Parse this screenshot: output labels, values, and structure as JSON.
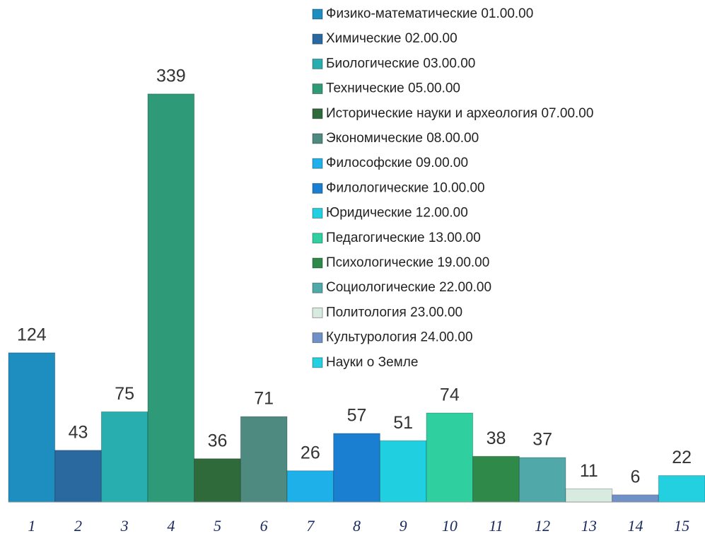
{
  "chart_data": {
    "type": "bar",
    "categories": [
      "1",
      "2",
      "3",
      "4",
      "5",
      "6",
      "7",
      "8",
      "9",
      "10",
      "11",
      "12",
      "13",
      "14",
      "15"
    ],
    "ylim": [
      0,
      400
    ],
    "series": [
      {
        "name": "Физико-математические 01.00.00",
        "color": "#1e8dc0",
        "values": [
          124,
          null,
          null,
          null,
          null,
          null,
          null,
          null,
          null,
          null,
          null,
          null,
          null,
          null,
          null
        ]
      },
      {
        "name": "Химические 02.00.00",
        "color": "#2a68a0",
        "values": [
          null,
          43,
          null,
          null,
          null,
          null,
          null,
          null,
          null,
          null,
          null,
          null,
          null,
          null,
          null
        ]
      },
      {
        "name": "Биологические 03.00.00",
        "color": "#28aeae",
        "values": [
          null,
          null,
          75,
          null,
          null,
          null,
          null,
          null,
          null,
          null,
          null,
          null,
          null,
          null,
          null
        ]
      },
      {
        "name": "Технические 05.00.00",
        "color": "#2e9a78",
        "values": [
          null,
          null,
          null,
          339,
          null,
          null,
          null,
          null,
          null,
          null,
          null,
          null,
          null,
          null,
          null
        ]
      },
      {
        "name": "Исторические науки и археология 07.00.00",
        "color": "#2f6a3a",
        "values": [
          null,
          null,
          null,
          null,
          36,
          null,
          null,
          null,
          null,
          null,
          null,
          null,
          null,
          null,
          null
        ]
      },
      {
        "name": "Экономические 08.00.00",
        "color": "#4f8a80",
        "values": [
          null,
          null,
          null,
          null,
          null,
          71,
          null,
          null,
          null,
          null,
          null,
          null,
          null,
          null,
          null
        ]
      },
      {
        "name": "Философские 09.00.00",
        "color": "#1eb0e8",
        "values": [
          null,
          null,
          null,
          null,
          null,
          null,
          26,
          null,
          null,
          null,
          null,
          null,
          null,
          null,
          null
        ]
      },
      {
        "name": "Филологические 10.00.00",
        "color": "#1a7fd0",
        "values": [
          null,
          null,
          null,
          null,
          null,
          null,
          null,
          57,
          null,
          null,
          null,
          null,
          null,
          null,
          null
        ]
      },
      {
        "name": "Юридические 12.00.00",
        "color": "#20d0e0",
        "values": [
          null,
          null,
          null,
          null,
          null,
          null,
          null,
          null,
          51,
          null,
          null,
          null,
          null,
          null,
          null
        ]
      },
      {
        "name": "Педагогические 13.00.00",
        "color": "#30cfa0",
        "values": [
          null,
          null,
          null,
          null,
          null,
          null,
          null,
          null,
          null,
          74,
          null,
          null,
          null,
          null,
          null
        ]
      },
      {
        "name": "Психологические 19.00.00",
        "color": "#2f8a4a",
        "values": [
          null,
          null,
          null,
          null,
          null,
          null,
          null,
          null,
          null,
          null,
          38,
          null,
          null,
          null,
          null
        ]
      },
      {
        "name": "Социологические 22.00.00",
        "color": "#50a8a8",
        "values": [
          null,
          null,
          null,
          null,
          null,
          null,
          null,
          null,
          null,
          null,
          null,
          37,
          null,
          null,
          null
        ]
      },
      {
        "name": "Политология 23.00.00",
        "color": "#d8ebe0",
        "values": [
          null,
          null,
          null,
          null,
          null,
          null,
          null,
          null,
          null,
          null,
          null,
          null,
          11,
          null,
          null
        ]
      },
      {
        "name": "Культурология 24.00.00",
        "color": "#7090c8",
        "values": [
          null,
          null,
          null,
          null,
          null,
          null,
          null,
          null,
          null,
          null,
          null,
          null,
          null,
          6,
          null
        ]
      },
      {
        "name": "Науки о Земле",
        "color": "#22d0e0",
        "values": [
          null,
          null,
          null,
          null,
          null,
          null,
          null,
          null,
          null,
          null,
          null,
          null,
          null,
          null,
          22
        ]
      }
    ]
  }
}
